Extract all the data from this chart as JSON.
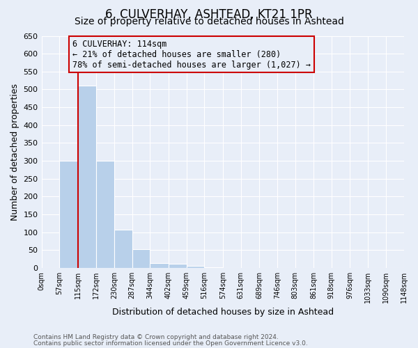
{
  "title": "6, CULVERHAY, ASHTEAD, KT21 1PR",
  "subtitle": "Size of property relative to detached houses in Ashtead",
  "xlabel": "Distribution of detached houses by size in Ashtead",
  "ylabel": "Number of detached properties",
  "bin_edges": [
    0,
    57,
    115,
    172,
    230,
    287,
    344,
    402,
    459,
    516,
    574,
    631,
    689,
    746,
    803,
    861,
    918,
    976,
    1033,
    1090,
    1148
  ],
  "bin_labels": [
    "0sqm",
    "57sqm",
    "115sqm",
    "172sqm",
    "230sqm",
    "287sqm",
    "344sqm",
    "402sqm",
    "459sqm",
    "516sqm",
    "574sqm",
    "631sqm",
    "689sqm",
    "746sqm",
    "803sqm",
    "861sqm",
    "918sqm",
    "976sqm",
    "1033sqm",
    "1090sqm",
    "1148sqm"
  ],
  "counts": [
    0,
    300,
    510,
    300,
    107,
    52,
    14,
    12,
    5,
    1,
    0,
    0,
    0,
    0,
    0,
    0,
    0,
    0,
    0,
    0
  ],
  "bar_color": "#b8d0ea",
  "property_line_x": 115,
  "ylim": [
    0,
    650
  ],
  "yticks": [
    0,
    50,
    100,
    150,
    200,
    250,
    300,
    350,
    400,
    450,
    500,
    550,
    600,
    650
  ],
  "annotation_box_text": "6 CULVERHAY: 114sqm\n← 21% of detached houses are smaller (280)\n78% of semi-detached houses are larger (1,027) →",
  "annotation_box_color": "#cc0000",
  "footer1": "Contains HM Land Registry data © Crown copyright and database right 2024.",
  "footer2": "Contains public sector information licensed under the Open Government Licence v3.0.",
  "background_color": "#e8eef8",
  "grid_color": "#ffffff",
  "title_fontsize": 12,
  "subtitle_fontsize": 10
}
